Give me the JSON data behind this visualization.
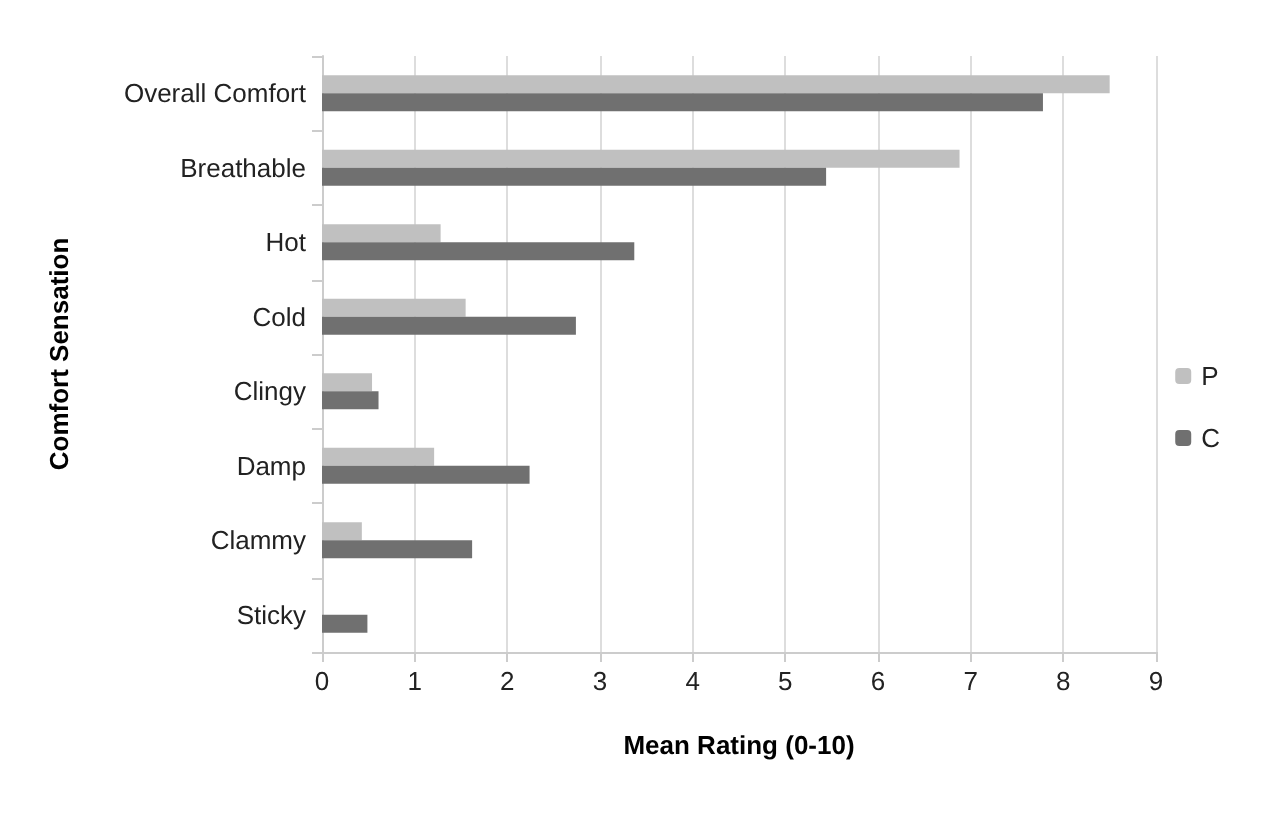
{
  "chart_data": {
    "type": "bar",
    "orientation": "horizontal",
    "xlabel": "Mean Rating (0-10)",
    "ylabel": "Comfort Sensation",
    "categories": [
      "Overall Comfort",
      "Breathable",
      "Hot",
      "Cold",
      "Clingy",
      "Damp",
      "Clammy",
      "Sticky"
    ],
    "series": [
      {
        "name": "P",
        "color": "#c0c0c0",
        "values": [
          8.5,
          6.88,
          1.28,
          1.55,
          0.54,
          1.21,
          0.43,
          null
        ]
      },
      {
        "name": "C",
        "color": "#707070",
        "values": [
          7.78,
          5.44,
          3.37,
          2.74,
          0.61,
          2.24,
          1.62,
          0.49
        ]
      }
    ],
    "xlim": [
      0,
      9
    ],
    "xticks": [
      0,
      1,
      2,
      3,
      4,
      5,
      6,
      7,
      8,
      9
    ],
    "grid": "x",
    "legend": "right"
  }
}
